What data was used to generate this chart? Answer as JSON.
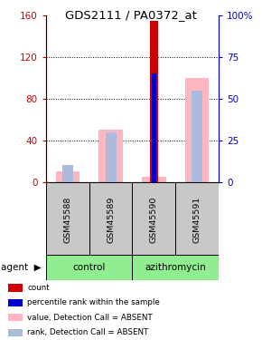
{
  "title": "GDS2111 / PA0372_at",
  "samples": [
    "GSM45588",
    "GSM45589",
    "GSM45590",
    "GSM45591"
  ],
  "left_ylim": [
    0,
    160
  ],
  "right_ylim": [
    0,
    100
  ],
  "left_yticks": [
    0,
    40,
    80,
    120,
    160
  ],
  "right_yticks": [
    0,
    25,
    50,
    75,
    100
  ],
  "right_yticklabels": [
    "0",
    "25",
    "50",
    "75",
    "100%"
  ],
  "count_values": [
    0,
    0,
    155,
    0
  ],
  "percentile_values": [
    0,
    0,
    65,
    0
  ],
  "absent_value_values": [
    10,
    50,
    5,
    100
  ],
  "absent_rank_values": [
    10,
    30,
    0,
    55
  ],
  "count_color": "#CC0000",
  "percentile_color": "#0000CC",
  "absent_value_color": "#FFB6C1",
  "absent_rank_color": "#AABBDD",
  "bg_color": "#FFFFFF",
  "plot_bg": "#FFFFFF",
  "axis_left_color": "#CC0000",
  "axis_right_color": "#0000CC",
  "sample_bg_color": "#C8C8C8",
  "group_color": "#90EE90",
  "legend_items": [
    {
      "label": "count",
      "color": "#CC0000"
    },
    {
      "label": "percentile rank within the sample",
      "color": "#0000CC"
    },
    {
      "label": "value, Detection Call = ABSENT",
      "color": "#FFB6C1"
    },
    {
      "label": "rank, Detection Call = ABSENT",
      "color": "#AABBDD"
    }
  ]
}
